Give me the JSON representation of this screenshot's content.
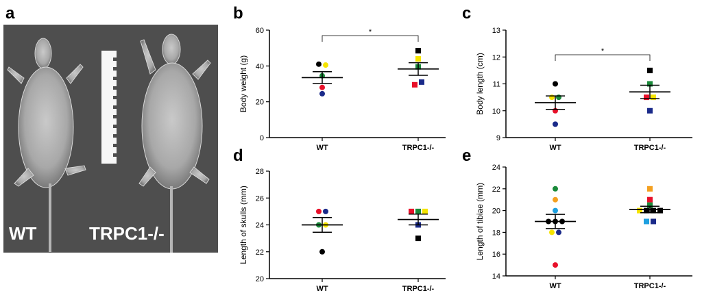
{
  "panel_letters": {
    "a": "a",
    "b": "b",
    "c": "c",
    "d": "d",
    "e": "e"
  },
  "xray": {
    "wt_label": "WT",
    "ko_label": "TRPC1-/-"
  },
  "colors": {
    "black": "#000000",
    "yellow": "#f5e400",
    "green": "#1a8a3a",
    "red": "#e8102a",
    "blue": "#1a2a8a",
    "orange": "#f4a020",
    "cyan": "#1ea0e0"
  },
  "chart_data": [
    {
      "id": "b",
      "type": "scatter",
      "categories": [
        "WT",
        "TRPC1-/-"
      ],
      "ylabel": "Body weight (g)",
      "ylim": [
        0,
        60
      ],
      "yticks": [
        0,
        20,
        40,
        60
      ],
      "significance": {
        "label": "*"
      },
      "groups": [
        {
          "marker": "circle",
          "mean": 33.5,
          "sem": 3.3,
          "points": [
            {
              "y": 41,
              "color": "black",
              "off": -0.5
            },
            {
              "y": 40.5,
              "color": "yellow",
              "off": 0.5
            },
            {
              "y": 34.5,
              "color": "green",
              "off": 0
            },
            {
              "y": 28,
              "color": "red",
              "off": 0
            },
            {
              "y": 24.5,
              "color": "blue",
              "off": 0
            }
          ]
        },
        {
          "marker": "square",
          "mean": 38.3,
          "sem": 3.5,
          "points": [
            {
              "y": 48.5,
              "color": "black",
              "off": 0
            },
            {
              "y": 44,
              "color": "yellow",
              "off": 0
            },
            {
              "y": 39.5,
              "color": "green",
              "off": 0
            },
            {
              "y": 29.5,
              "color": "red",
              "off": -0.5
            },
            {
              "y": 31,
              "color": "blue",
              "off": 0.5
            }
          ]
        }
      ]
    },
    {
      "id": "c",
      "type": "scatter",
      "categories": [
        "WT",
        "TRPC1-/-"
      ],
      "ylabel": "Body length (cm)",
      "ylim": [
        9,
        13
      ],
      "yticks": [
        9,
        10,
        11,
        12,
        13
      ],
      "significance": {
        "label": "*"
      },
      "groups": [
        {
          "marker": "circle",
          "mean": 10.3,
          "sem": 0.25,
          "points": [
            {
              "y": 11,
              "color": "black",
              "off": 0
            },
            {
              "y": 10.5,
              "color": "yellow",
              "off": -0.5
            },
            {
              "y": 10.5,
              "color": "green",
              "off": 0.5
            },
            {
              "y": 10,
              "color": "red",
              "off": 0
            },
            {
              "y": 9.5,
              "color": "blue",
              "off": 0
            }
          ]
        },
        {
          "marker": "square",
          "mean": 10.7,
          "sem": 0.25,
          "points": [
            {
              "y": 11.5,
              "color": "black",
              "off": 0
            },
            {
              "y": 11,
              "color": "green",
              "off": 0
            },
            {
              "y": 10.5,
              "color": "red",
              "off": -0.5
            },
            {
              "y": 10.5,
              "color": "yellow",
              "off": 0.5
            },
            {
              "y": 10,
              "color": "blue",
              "off": 0
            }
          ]
        }
      ]
    },
    {
      "id": "d",
      "type": "scatter",
      "categories": [
        "WT",
        "TRPC1-/-"
      ],
      "ylabel": "Length of skulls (mm)",
      "ylim": [
        20,
        28
      ],
      "yticks": [
        20,
        22,
        24,
        26,
        28
      ],
      "groups": [
        {
          "marker": "circle",
          "mean": 24.0,
          "sem": 0.55,
          "points": [
            {
              "y": 25,
              "color": "red",
              "off": -0.5
            },
            {
              "y": 25,
              "color": "blue",
              "off": 0.5
            },
            {
              "y": 24,
              "color": "green",
              "off": -0.5
            },
            {
              "y": 24,
              "color": "yellow",
              "off": 0.5
            },
            {
              "y": 22,
              "color": "black",
              "off": 0
            }
          ]
        },
        {
          "marker": "square",
          "mean": 24.4,
          "sem": 0.4,
          "points": [
            {
              "y": 25,
              "color": "red",
              "off": -1
            },
            {
              "y": 25,
              "color": "green",
              "off": 0
            },
            {
              "y": 25,
              "color": "yellow",
              "off": 1
            },
            {
              "y": 24,
              "color": "blue",
              "off": 0
            },
            {
              "y": 23,
              "color": "black",
              "off": 0
            }
          ]
        }
      ]
    },
    {
      "id": "e",
      "type": "scatter",
      "categories": [
        "WT",
        "TRPC1-/-"
      ],
      "ylabel": "Length of tibiae (mm)",
      "ylim": [
        14,
        24
      ],
      "yticks": [
        14,
        16,
        18,
        20,
        22,
        24
      ],
      "groups": [
        {
          "marker": "circle",
          "mean": 19.0,
          "sem": 0.65,
          "points": [
            {
              "y": 22,
              "color": "green",
              "off": 0
            },
            {
              "y": 21,
              "color": "orange",
              "off": 0
            },
            {
              "y": 20,
              "color": "cyan",
              "off": 0
            },
            {
              "y": 19,
              "color": "black",
              "off": -1
            },
            {
              "y": 19,
              "color": "black",
              "off": 0
            },
            {
              "y": 19,
              "color": "black",
              "off": 1
            },
            {
              "y": 18,
              "color": "yellow",
              "off": -0.5
            },
            {
              "y": 18,
              "color": "blue",
              "off": 0.5
            },
            {
              "y": 15,
              "color": "red",
              "off": 0
            }
          ]
        },
        {
          "marker": "square",
          "mean": 20.1,
          "sem": 0.3,
          "points": [
            {
              "y": 22,
              "color": "orange",
              "off": 0
            },
            {
              "y": 21,
              "color": "red",
              "off": 0
            },
            {
              "y": 20.5,
              "color": "green",
              "off": 0
            },
            {
              "y": 20,
              "color": "yellow",
              "off": -1.5
            },
            {
              "y": 20,
              "color": "black",
              "off": -0.5
            },
            {
              "y": 20,
              "color": "black",
              "off": 0.5
            },
            {
              "y": 20,
              "color": "black",
              "off": 1.5
            },
            {
              "y": 19,
              "color": "cyan",
              "off": -0.5
            },
            {
              "y": 19,
              "color": "blue",
              "off": 0.5
            }
          ]
        }
      ]
    }
  ]
}
